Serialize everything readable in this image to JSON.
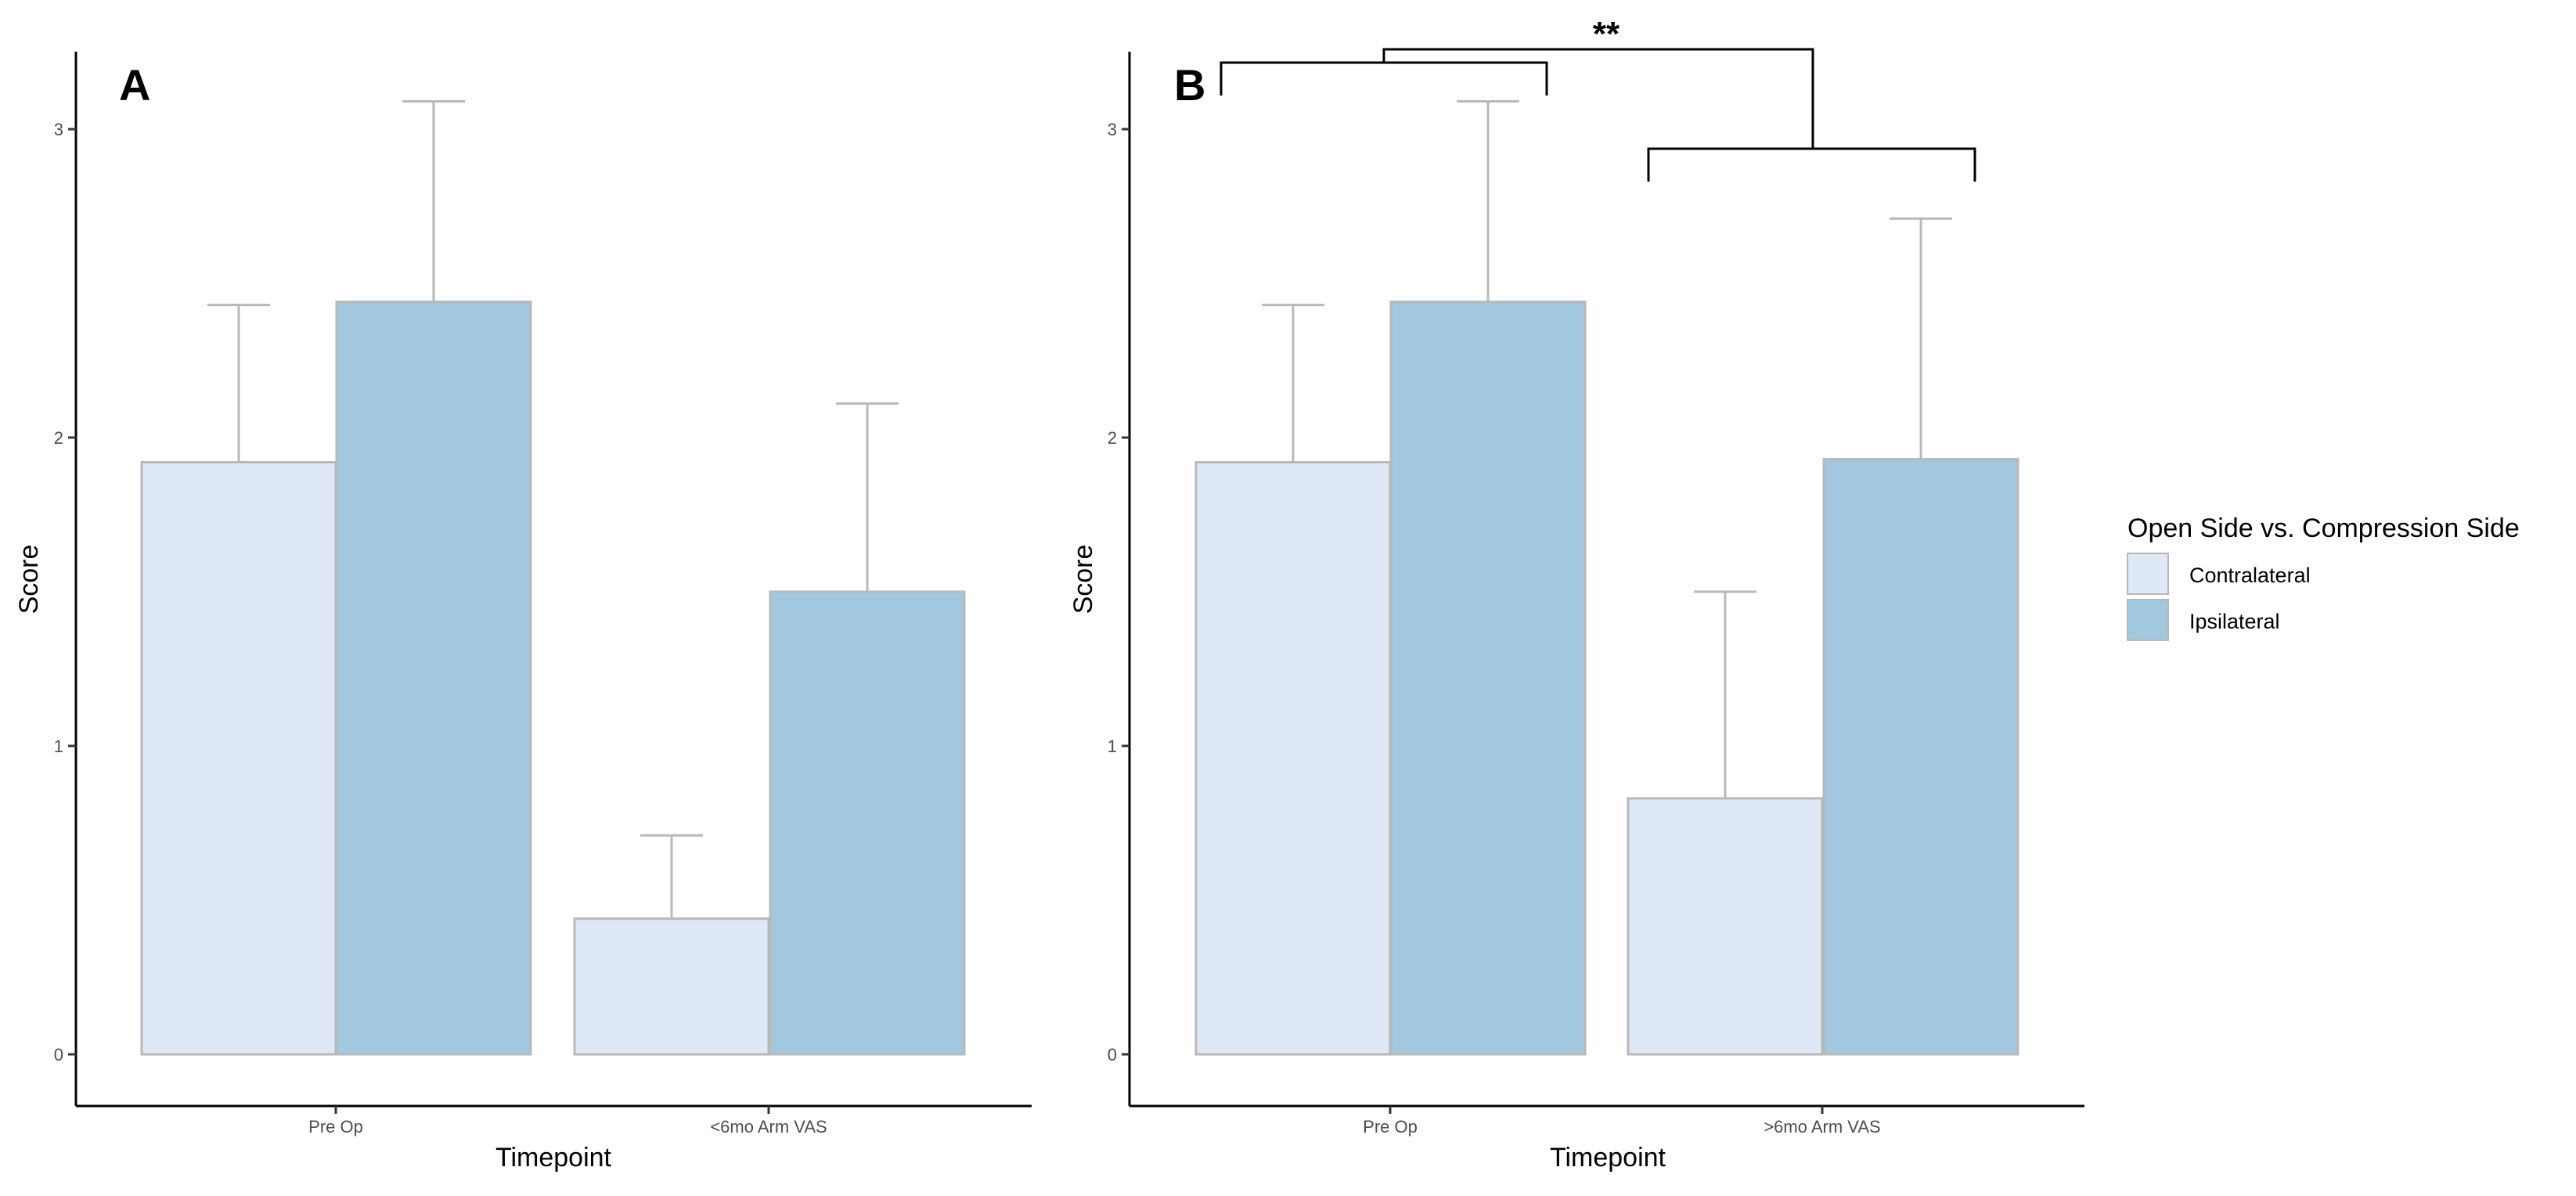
{
  "chart_data": [
    {
      "type": "bar",
      "panel_label": "A",
      "categories": [
        "Pre Op",
        "<6mo Arm VAS"
      ],
      "series": [
        {
          "name": "Contralateral",
          "values": [
            1.92,
            0.44
          ],
          "error_upper": [
            2.43,
            0.71
          ]
        },
        {
          "name": "Ipsilateral",
          "values": [
            2.44,
            1.5
          ],
          "error_upper": [
            3.09,
            2.11
          ]
        }
      ],
      "xlabel": "Timepoint",
      "ylabel": "Score",
      "ylim": [
        0,
        3.3
      ],
      "yticks": [
        "0",
        "1",
        "2",
        "3"
      ],
      "grid": false
    },
    {
      "type": "bar",
      "panel_label": "B",
      "categories": [
        "Pre Op",
        ">6mo Arm VAS"
      ],
      "series": [
        {
          "name": "Contralateral",
          "values": [
            1.92,
            0.83
          ],
          "error_upper": [
            2.43,
            1.5
          ]
        },
        {
          "name": "Ipsilateral",
          "values": [
            2.44,
            1.93
          ],
          "error_upper": [
            3.09,
            2.71
          ]
        }
      ],
      "xlabel": "Timepoint",
      "ylabel": "Score",
      "ylim": [
        0,
        3.3
      ],
      "yticks": [
        "0",
        "1",
        "2",
        "3"
      ],
      "grid": false,
      "significance": {
        "label": "**"
      }
    }
  ],
  "legend": {
    "title": "Open Side vs. Compression Side",
    "placement": "right",
    "items": [
      {
        "label": "Contralateral",
        "color": "#dfe9f5"
      },
      {
        "label": "Ipsilateral",
        "color": "#a2c8e0"
      }
    ]
  },
  "colors": {
    "contralateral": "#dfe9f5",
    "ipsilateral": "#a2c8e0",
    "bar_outline": "#b8b8b8",
    "error_bar": "#b8b8b8"
  }
}
